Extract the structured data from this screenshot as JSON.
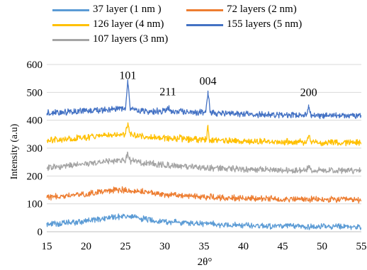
{
  "chart_data": {
    "type": "line",
    "title": "",
    "xlabel": "2θ°",
    "ylabel": "Intensity (a.u)",
    "xlim": [
      15,
      55
    ],
    "ylim": [
      0,
      600
    ],
    "x_ticks": [
      "15",
      "20",
      "25",
      "30",
      "35",
      "40",
      "45",
      "50",
      "55"
    ],
    "y_ticks": [
      "0",
      "100",
      "200",
      "300",
      "400",
      "500",
      "600"
    ],
    "grid": "horizontal",
    "legend_position": "top",
    "series": [
      {
        "name": "37 layer (1 nm )",
        "color": "#5b9bd5",
        "x": [
          15,
          17,
          19,
          21,
          22,
          23,
          24,
          25,
          26,
          27,
          28,
          29,
          30,
          32,
          34,
          36,
          38,
          40,
          42,
          44,
          46,
          48,
          50,
          52,
          55
        ],
        "y": [
          27,
          30,
          35,
          42,
          47,
          52,
          55,
          55,
          52,
          48,
          43,
          40,
          37,
          33,
          30,
          27,
          25,
          23,
          22,
          21,
          20,
          19,
          18,
          18,
          17
        ]
      },
      {
        "name": "72 layers (2 nm)",
        "color": "#ed7d31",
        "x": [
          15,
          17,
          19,
          21,
          22,
          23,
          24,
          25,
          26,
          27,
          28,
          29,
          30,
          32,
          34,
          36,
          38,
          40,
          42,
          44,
          46,
          48,
          50,
          52,
          55
        ],
        "y": [
          124,
          128,
          133,
          140,
          144,
          148,
          150,
          150,
          147,
          144,
          140,
          137,
          134,
          130,
          127,
          124,
          122,
          120,
          119,
          118,
          117,
          116,
          115,
          115,
          114
        ]
      },
      {
        "name": "107 layers (3 nm)",
        "color": "#a5a5a5",
        "x": [
          15,
          17,
          19,
          21,
          22,
          23,
          24,
          25,
          25.3,
          25.6,
          26,
          27,
          28,
          29,
          30,
          32,
          34,
          36,
          38,
          40,
          42,
          44,
          46,
          48,
          48.3,
          48.6,
          50,
          52,
          55
        ],
        "y": [
          230,
          235,
          240,
          247,
          251,
          254,
          256,
          256,
          285,
          255,
          253,
          249,
          245,
          242,
          239,
          235,
          231,
          228,
          226,
          224,
          223,
          222,
          221,
          221,
          238,
          221,
          220,
          220,
          219
        ]
      },
      {
        "name": "126 layer (4 nm)",
        "color": "#ffc000",
        "x": [
          15,
          17,
          19,
          21,
          22,
          23,
          24,
          25,
          25.3,
          25.6,
          26,
          27,
          28,
          29,
          30,
          31.8,
          32,
          32.2,
          34,
          35.3,
          35.5,
          35.7,
          36,
          38,
          40,
          42,
          44,
          46,
          48,
          48.3,
          48.6,
          50,
          52,
          55
        ],
        "y": [
          328,
          332,
          336,
          342,
          345,
          348,
          350,
          350,
          385,
          349,
          347,
          344,
          341,
          338,
          336,
          333,
          345,
          333,
          330,
          329,
          382,
          329,
          328,
          326,
          325,
          324,
          323,
          322,
          321,
          345,
          321,
          320,
          320,
          319
        ]
      },
      {
        "name": "155 layers (5 nm)",
        "color": "#4472c4",
        "x": [
          15,
          17,
          19,
          21,
          22,
          23,
          24,
          25,
          25.3,
          25.6,
          26,
          27,
          28,
          29,
          30,
          30.4,
          30.8,
          31.5,
          32,
          34,
          35.2,
          35.5,
          35.8,
          36,
          38,
          40,
          42,
          44,
          46,
          48,
          48.3,
          48.6,
          50,
          52,
          55
        ],
        "y": [
          425,
          428,
          431,
          435,
          437,
          439,
          440,
          440,
          545,
          440,
          438,
          435,
          433,
          432,
          432,
          445,
          433,
          430,
          430,
          428,
          428,
          505,
          427,
          426,
          424,
          422,
          421,
          420,
          419,
          418,
          455,
          418,
          417,
          417,
          415
        ]
      }
    ],
    "annotations": [
      {
        "text": "101",
        "x": 25.3,
        "y": 548
      },
      {
        "text": "211",
        "x": 30.4,
        "y": 490
      },
      {
        "text": "004",
        "x": 35.5,
        "y": 528
      },
      {
        "text": "200",
        "x": 48.3,
        "y": 487
      }
    ]
  }
}
